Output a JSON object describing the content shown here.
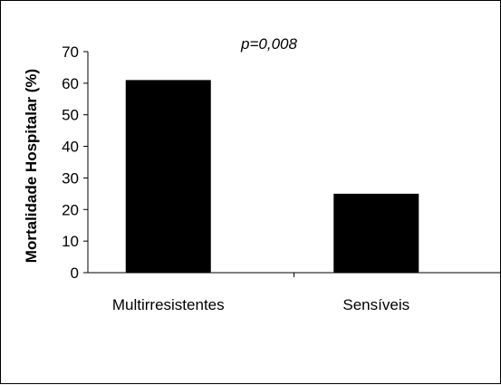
{
  "chart_data": {
    "type": "bar",
    "categories": [
      "Multirresistentes",
      "Sensíveis"
    ],
    "values": [
      61,
      25
    ],
    "ylabel": "Mortalidade Hospitalar (%)",
    "xlabel": "",
    "ylim": [
      0,
      70
    ],
    "yticks": [
      0,
      10,
      20,
      30,
      40,
      50,
      60,
      70
    ],
    "annotation": "p=0,008",
    "grid": false,
    "bar_color": "#000000"
  }
}
